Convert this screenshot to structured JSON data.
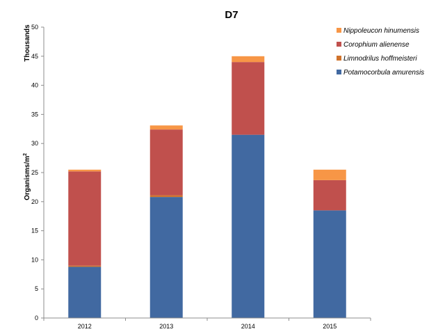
{
  "chart_data": {
    "type": "bar",
    "stacked": true,
    "title": "D7",
    "ylabel_main": "Organisms/m",
    "ylabel_superscript": "2",
    "yunit": "Thousands",
    "ylim": [
      0,
      50
    ],
    "yticks": [
      0,
      5,
      10,
      15,
      20,
      25,
      30,
      35,
      40,
      45,
      50
    ],
    "categories": [
      "2012",
      "2013",
      "2014",
      "2015"
    ],
    "series": [
      {
        "name": "Potamocorbula amurensis",
        "color": "#4169A1",
        "values": [
          8.8,
          20.8,
          31.5,
          18.5
        ]
      },
      {
        "name": "Limnodrilus hoffmeisteri",
        "color": "#D0732C",
        "values": [
          0.2,
          0.3,
          0.0,
          0.0
        ]
      },
      {
        "name": "Corophium alienense",
        "color": "#C0504D",
        "values": [
          16.2,
          11.3,
          12.5,
          5.2
        ]
      },
      {
        "name": "Nippoleucon hinumensis",
        "color": "#F79646",
        "values": [
          0.3,
          0.7,
          1.0,
          1.8
        ]
      }
    ],
    "legend_order": [
      3,
      2,
      1,
      0
    ],
    "legend_position": "top-right",
    "grid": false
  }
}
